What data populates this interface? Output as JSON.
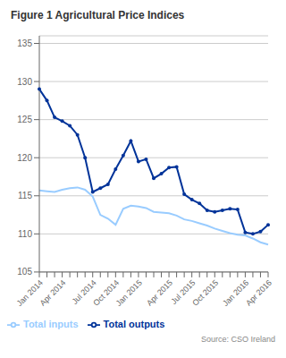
{
  "chart_data": {
    "type": "line",
    "title": "Figure 1 Agricultural Price Indices",
    "annotations": [
      "Source: CSO Ireland"
    ],
    "categories": [
      "Jan 2014",
      null,
      null,
      "Apr 2014",
      null,
      null,
      null,
      "Jul 2014",
      null,
      null,
      "Oct 2014",
      null,
      null,
      "Jan 2015",
      null,
      null,
      null,
      "Apr 2015",
      null,
      null,
      "Jul 2015",
      null,
      null,
      "Oct 2015",
      null,
      null,
      null,
      "Jan 2016",
      null,
      null,
      "Apr 2016"
    ],
    "series": [
      {
        "name": "Total outputs",
        "color": "#003399",
        "marker": "circle",
        "values": [
          129.0,
          127.5,
          125.3,
          124.8,
          124.2,
          123.0,
          120.0,
          115.5,
          116.0,
          116.5,
          118.5,
          120.3,
          122.2,
          119.5,
          119.8,
          117.3,
          117.9,
          118.7,
          118.8,
          115.2,
          114.5,
          114.0,
          113.1,
          112.9,
          113.1,
          113.3,
          113.2,
          110.2,
          110.0,
          110.3,
          111.2
        ]
      },
      {
        "name": "Total inputs",
        "color": "#99ccff",
        "marker": "none",
        "values": [
          115.7,
          115.6,
          115.5,
          115.8,
          116.0,
          116.1,
          115.8,
          114.9,
          112.5,
          112.0,
          111.2,
          113.3,
          113.7,
          113.6,
          113.4,
          112.9,
          112.8,
          112.7,
          112.4,
          111.9,
          111.7,
          111.4,
          111.1,
          110.7,
          110.4,
          110.1,
          109.9,
          109.8,
          109.4,
          108.9,
          108.6
        ]
      }
    ],
    "ylim": [
      105,
      136
    ],
    "yticks": [
      105,
      110,
      115,
      120,
      125,
      130,
      135
    ],
    "grid": true,
    "legend": "bottom"
  }
}
